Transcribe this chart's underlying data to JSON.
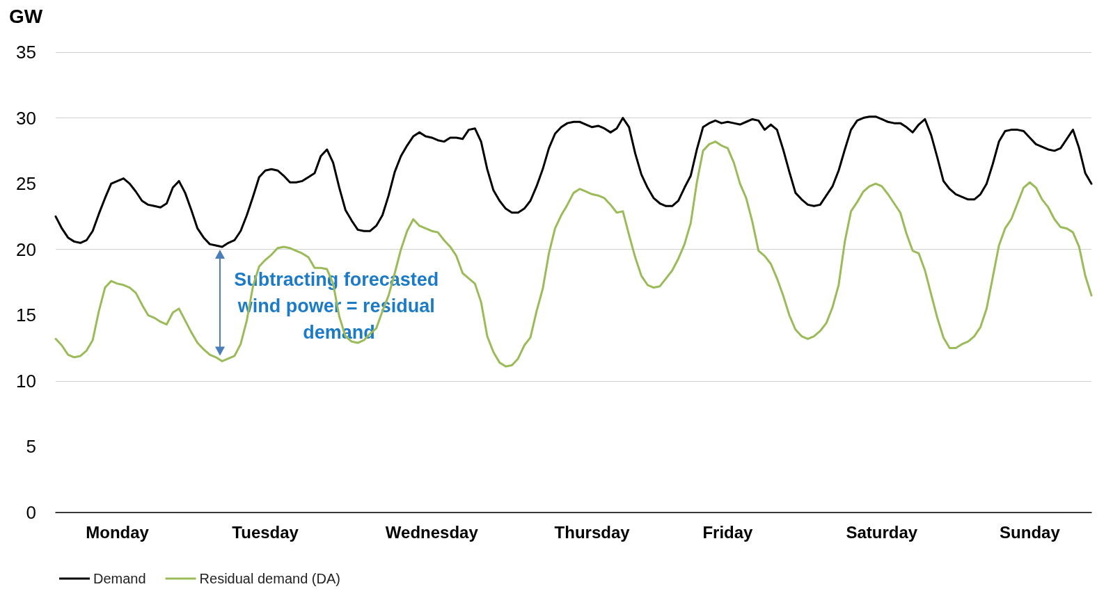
{
  "chart_data": {
    "type": "line",
    "ylabel": "GW",
    "categories": [
      null,
      null,
      null,
      null,
      null,
      null,
      null,
      null,
      null,
      null,
      "Monday",
      null,
      null,
      null,
      null,
      null,
      null,
      null,
      null,
      null,
      null,
      null,
      null,
      null,
      null,
      null,
      null,
      null,
      null,
      null,
      null,
      null,
      null,
      null,
      "Tuesday",
      null,
      null,
      null,
      null,
      null,
      null,
      null,
      null,
      null,
      null,
      null,
      null,
      null,
      null,
      null,
      null,
      null,
      null,
      null,
      null,
      null,
      null,
      null,
      null,
      null,
      null,
      "Wednesday",
      null,
      null,
      null,
      null,
      null,
      null,
      null,
      null,
      null,
      null,
      null,
      null,
      null,
      null,
      null,
      null,
      null,
      null,
      null,
      null,
      null,
      null,
      null,
      null,
      null,
      "Thursday",
      null,
      null,
      null,
      null,
      null,
      null,
      null,
      null,
      null,
      null,
      null,
      null,
      null,
      null,
      null,
      null,
      null,
      null,
      null,
      null,
      null,
      "Friday",
      null,
      null,
      null,
      null,
      null,
      null,
      null,
      null,
      null,
      null,
      null,
      null,
      null,
      null,
      null,
      null,
      null,
      null,
      null,
      null,
      null,
      null,
      null,
      null,
      "Saturday",
      null,
      null,
      null,
      null,
      null,
      null,
      null,
      null,
      null,
      null,
      null,
      null,
      null,
      null,
      null,
      null,
      null,
      null,
      null,
      null,
      null,
      null,
      null,
      "Sunday",
      null,
      null,
      null,
      null,
      null,
      null,
      null,
      null,
      null,
      null
    ],
    "ylim": [
      0,
      35
    ],
    "yticks": [
      0,
      5,
      10,
      15,
      20,
      25,
      30,
      35
    ],
    "grid": "y",
    "legend": "bottom left",
    "marker": "none",
    "line_style": "solid",
    "annotations": [
      "Subtracting forecasted wind power = residual demand"
    ],
    "series": [
      {
        "name": "Demand",
        "color": "#000000",
        "values": [
          22.5,
          21.6,
          20.9,
          20.6,
          20.5,
          20.7,
          21.4,
          22.7,
          23.9,
          25.0,
          25.2,
          25.4,
          25.0,
          24.4,
          23.7,
          23.4,
          23.3,
          23.2,
          23.5,
          24.7,
          25.2,
          24.3,
          23.0,
          21.6,
          20.9,
          20.4,
          20.3,
          20.2,
          20.5,
          20.7,
          21.4,
          22.6,
          24.0,
          25.5,
          26.0,
          26.1,
          26.0,
          25.6,
          25.1,
          25.1,
          25.2,
          25.5,
          25.8,
          27.1,
          27.6,
          26.6,
          24.7,
          23.0,
          22.2,
          21.5,
          21.4,
          21.4,
          21.8,
          22.6,
          24.1,
          25.9,
          27.1,
          27.9,
          28.6,
          28.9,
          28.6,
          28.5,
          28.3,
          28.2,
          28.5,
          28.5,
          28.4,
          29.1,
          29.2,
          28.2,
          26.1,
          24.5,
          23.7,
          23.1,
          22.8,
          22.8,
          23.1,
          23.7,
          24.8,
          26.1,
          27.7,
          28.8,
          29.3,
          29.6,
          29.7,
          29.7,
          29.5,
          29.3,
          29.4,
          29.2,
          28.9,
          29.2,
          30.0,
          29.3,
          27.3,
          25.7,
          24.7,
          23.9,
          23.5,
          23.3,
          23.3,
          23.7,
          24.7,
          25.6,
          27.6,
          29.3,
          29.6,
          29.8,
          29.6,
          29.7,
          29.6,
          29.5,
          29.7,
          29.9,
          29.8,
          29.1,
          29.5,
          29.1,
          27.6,
          25.9,
          24.3,
          23.8,
          23.4,
          23.3,
          23.4,
          24.1,
          24.8,
          26.0,
          27.6,
          29.1,
          29.8,
          30.0,
          30.1,
          30.1,
          29.9,
          29.7,
          29.6,
          29.6,
          29.3,
          28.9,
          29.5,
          29.9,
          28.7,
          27.0,
          25.2,
          24.6,
          24.2,
          24.0,
          23.8,
          23.8,
          24.2,
          25.0,
          26.5,
          28.2,
          29.0,
          29.1,
          29.1,
          29.0,
          28.5,
          28.0,
          27.8,
          27.6,
          27.5,
          27.7,
          28.4,
          29.1,
          27.7,
          25.8,
          25.0
        ]
      },
      {
        "name": "Residual demand (DA)",
        "color": "#9bbb59",
        "values": [
          13.2,
          12.7,
          12.0,
          11.8,
          11.9,
          12.3,
          13.1,
          15.3,
          17.1,
          17.6,
          17.4,
          17.3,
          17.1,
          16.7,
          15.8,
          15.0,
          14.8,
          14.5,
          14.3,
          15.2,
          15.5,
          14.6,
          13.7,
          12.9,
          12.4,
          12.0,
          11.8,
          11.5,
          11.7,
          11.9,
          12.8,
          14.6,
          17.2,
          18.7,
          19.2,
          19.6,
          20.1,
          20.2,
          20.1,
          19.9,
          19.7,
          19.4,
          18.6,
          18.6,
          18.5,
          17.4,
          14.9,
          13.4,
          13.0,
          12.9,
          13.1,
          13.6,
          14.0,
          15.3,
          16.5,
          18.2,
          20.0,
          21.4,
          22.3,
          21.8,
          21.6,
          21.4,
          21.3,
          20.7,
          20.2,
          19.5,
          18.2,
          17.8,
          17.4,
          16.0,
          13.4,
          12.2,
          11.4,
          11.1,
          11.2,
          11.7,
          12.7,
          13.3,
          15.3,
          17.0,
          19.7,
          21.6,
          22.6,
          23.4,
          24.3,
          24.6,
          24.4,
          24.2,
          24.1,
          23.9,
          23.4,
          22.8,
          22.9,
          21.1,
          19.4,
          18.0,
          17.3,
          17.1,
          17.2,
          17.8,
          18.4,
          19.3,
          20.4,
          22.0,
          25.1,
          27.5,
          28.0,
          28.2,
          27.9,
          27.7,
          26.6,
          25.0,
          23.9,
          22.1,
          19.9,
          19.5,
          18.9,
          17.8,
          16.5,
          15.0,
          13.9,
          13.4,
          13.2,
          13.4,
          13.8,
          14.4,
          15.6,
          17.3,
          20.6,
          22.9,
          23.6,
          24.4,
          24.8,
          25.0,
          24.8,
          24.2,
          23.5,
          22.8,
          21.2,
          19.9,
          19.7,
          18.4,
          16.6,
          14.8,
          13.3,
          12.5,
          12.5,
          12.8,
          13.0,
          13.4,
          14.1,
          15.5,
          17.9,
          20.3,
          21.6,
          22.3,
          23.5,
          24.7,
          25.1,
          24.7,
          23.8,
          23.2,
          22.3,
          21.7,
          21.6,
          21.3,
          20.2,
          18.0,
          16.5
        ]
      }
    ]
  }
}
